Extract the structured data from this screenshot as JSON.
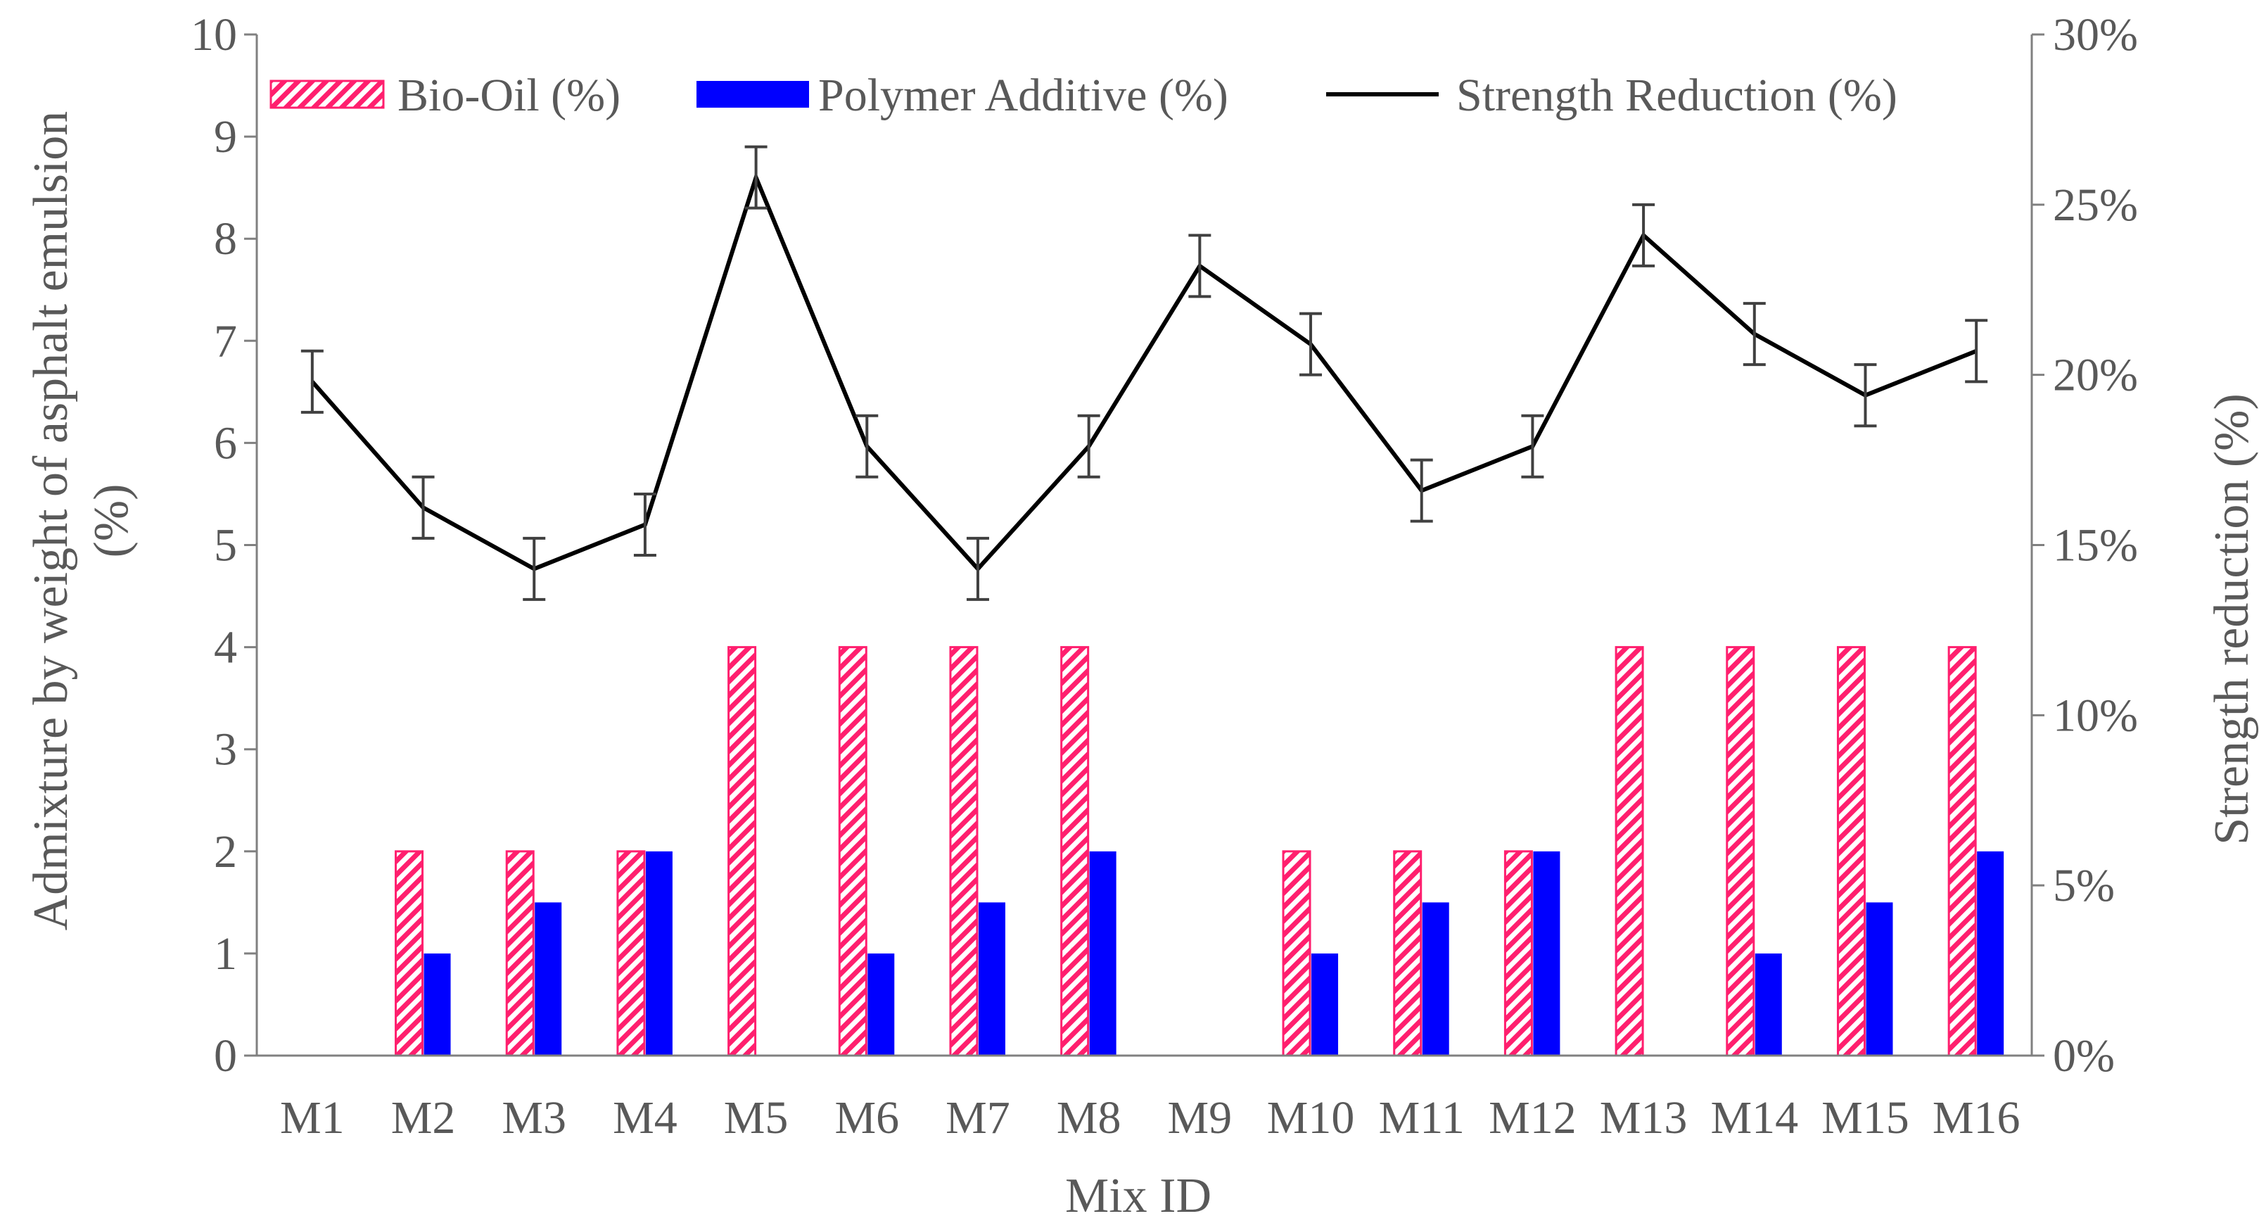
{
  "chart_data": {
    "type": "bar",
    "title": "",
    "categories": [
      "M1",
      "M2",
      "M3",
      "M4",
      "M5",
      "M6",
      "M7",
      "M8",
      "M9",
      "M10",
      "M11",
      "M12",
      "M13",
      "M14",
      "M15",
      "M16"
    ],
    "series": [
      {
        "name": "Bio-Oil (%)",
        "kind": "bar",
        "axis": "left",
        "color": "#FF1F6E",
        "pattern": "diagonal-hatch",
        "values": [
          0,
          2,
          2,
          2,
          4,
          4,
          4,
          4,
          0,
          2,
          2,
          2,
          4,
          4,
          4,
          4
        ]
      },
      {
        "name": "Polymer Additive (%)",
        "kind": "bar",
        "axis": "left",
        "color": "#0000FF",
        "values": [
          0,
          1,
          1.5,
          2,
          0,
          1,
          1.5,
          2,
          0,
          1,
          1.5,
          2,
          0,
          1,
          1.5,
          2
        ]
      },
      {
        "name": "Strength Reduction (%)",
        "kind": "line",
        "axis": "right",
        "color": "#000000",
        "values": [
          19.8,
          16.1,
          14.3,
          15.6,
          25.8,
          17.9,
          14.3,
          17.9,
          23.2,
          20.9,
          16.6,
          17.9,
          24.1,
          21.2,
          19.4,
          20.7
        ],
        "error": 0.9
      }
    ],
    "xlabel": "Mix ID",
    "ylabel": [
      "Admixture by weight of asphalt emulsion",
      "(%)"
    ],
    "y2label": "Strength reduction (%)",
    "ylim": [
      0,
      10
    ],
    "y2lim": [
      0,
      30
    ],
    "yticks": [
      "0",
      "1",
      "2",
      "3",
      "4",
      "5",
      "6",
      "7",
      "8",
      "9",
      "10"
    ],
    "y2ticks": [
      "0%",
      "5%",
      "10%",
      "15%",
      "20%",
      "25%",
      "30%"
    ],
    "grid": false,
    "legend": "top"
  }
}
